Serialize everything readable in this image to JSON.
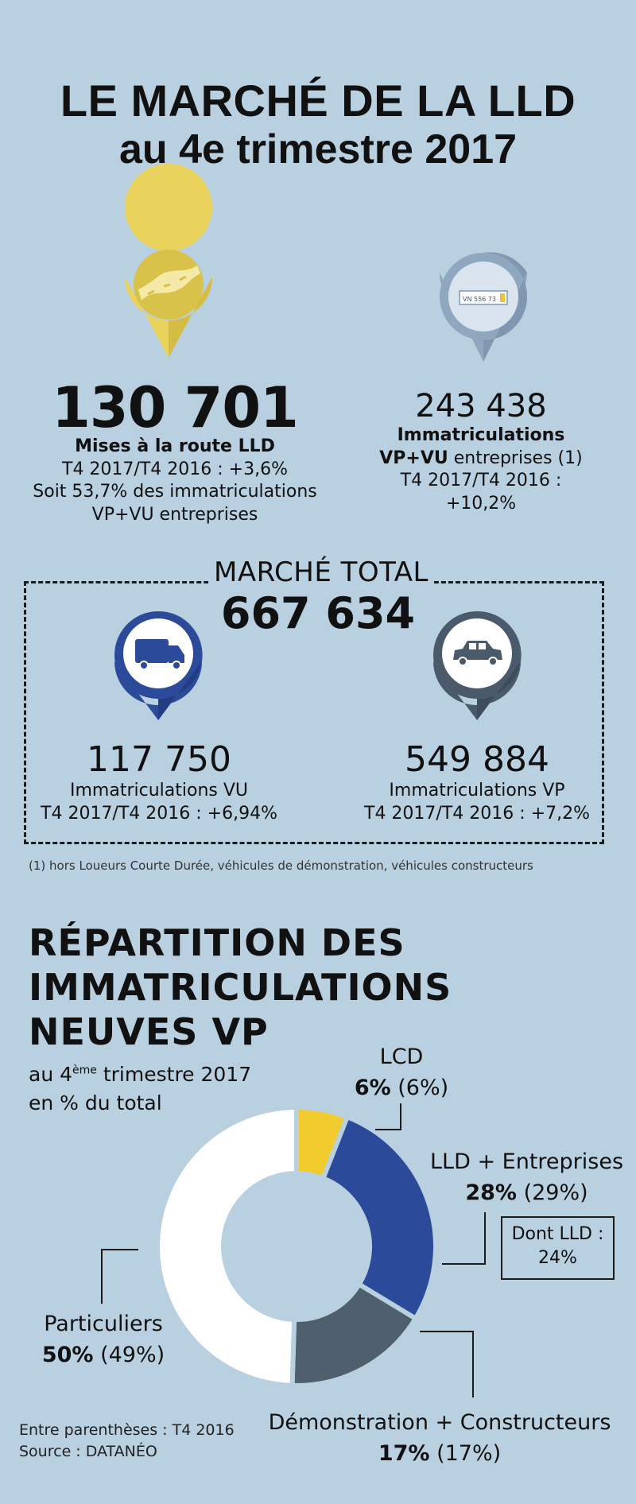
{
  "title": {
    "line1": "LE MARCHÉ DE LA LLD",
    "line2": "au 4e trimestre 2017"
  },
  "stats": {
    "mises": {
      "value": "130 701",
      "label": "Mises à la route LLD",
      "change": "T4 2017/T4 2016 : +3,6%",
      "share_line1": "Soit 53,7% des immatriculations",
      "share_line2": "VP+VU entreprises",
      "icon": "road-icon",
      "color": "#e9d35c"
    },
    "immat": {
      "value": "243 438",
      "label_line1": "Immatriculations",
      "label_bold": "VP+VU",
      "label_rest": " entreprises (1)",
      "change_line1": "T4 2017/T4 2016 :",
      "change_line2": "+10,2%",
      "icon": "license-plate-icon",
      "plate_text": "VN 556 73",
      "color": "#8fa7bf"
    }
  },
  "marche_total": {
    "label": "MARCHÉ TOTAL",
    "value": "667 634",
    "vu": {
      "value": "117 750",
      "label": "Immatriculations VU",
      "change": "T4 2017/T4 2016 : +6,94%",
      "icon": "van-icon",
      "color": "#2b4a9a"
    },
    "vp": {
      "value": "549 884",
      "label": "Immatriculations VP",
      "change": "T4 2017/T4 2016 : +7,2%",
      "icon": "car-icon",
      "color": "#4a5a6a"
    }
  },
  "footnote": "(1) hors Loueurs Courte Durée, véhicules de démonstration, véhicules constructeurs",
  "repartition": {
    "title_line1": "RÉPARTITION DES",
    "title_line2": "IMMATRICULATIONS",
    "title_line3": "NEUVES VP",
    "subtitle_pre": "au 4",
    "subtitle_sup": "ème",
    "subtitle_post": " trimestre 2017",
    "subtitle_line2": "en % du total",
    "dont_llg_line1": "Dont LLD :",
    "dont_llg_line2": "24%",
    "note": "Entre parenthèses : T4 2016",
    "source": "Source : DATANÉO"
  },
  "chart_data": {
    "type": "pie",
    "variant": "donut",
    "categories": [
      "LCD",
      "LLD + Entreprises",
      "Démonstration + Constructeurs",
      "Particuliers"
    ],
    "values": [
      6,
      28,
      17,
      50
    ],
    "previous_values": [
      6,
      29,
      17,
      49
    ],
    "percent_labels": [
      "6%",
      "28%",
      "17%",
      "50%"
    ],
    "previous_labels": [
      "(6%)",
      "(29%)",
      "(17%)",
      "(49%)"
    ],
    "colors": [
      "#f2cb2f",
      "#2b4a9a",
      "#4f5f6e",
      "#ffffff"
    ],
    "start_angle_deg": 0
  }
}
